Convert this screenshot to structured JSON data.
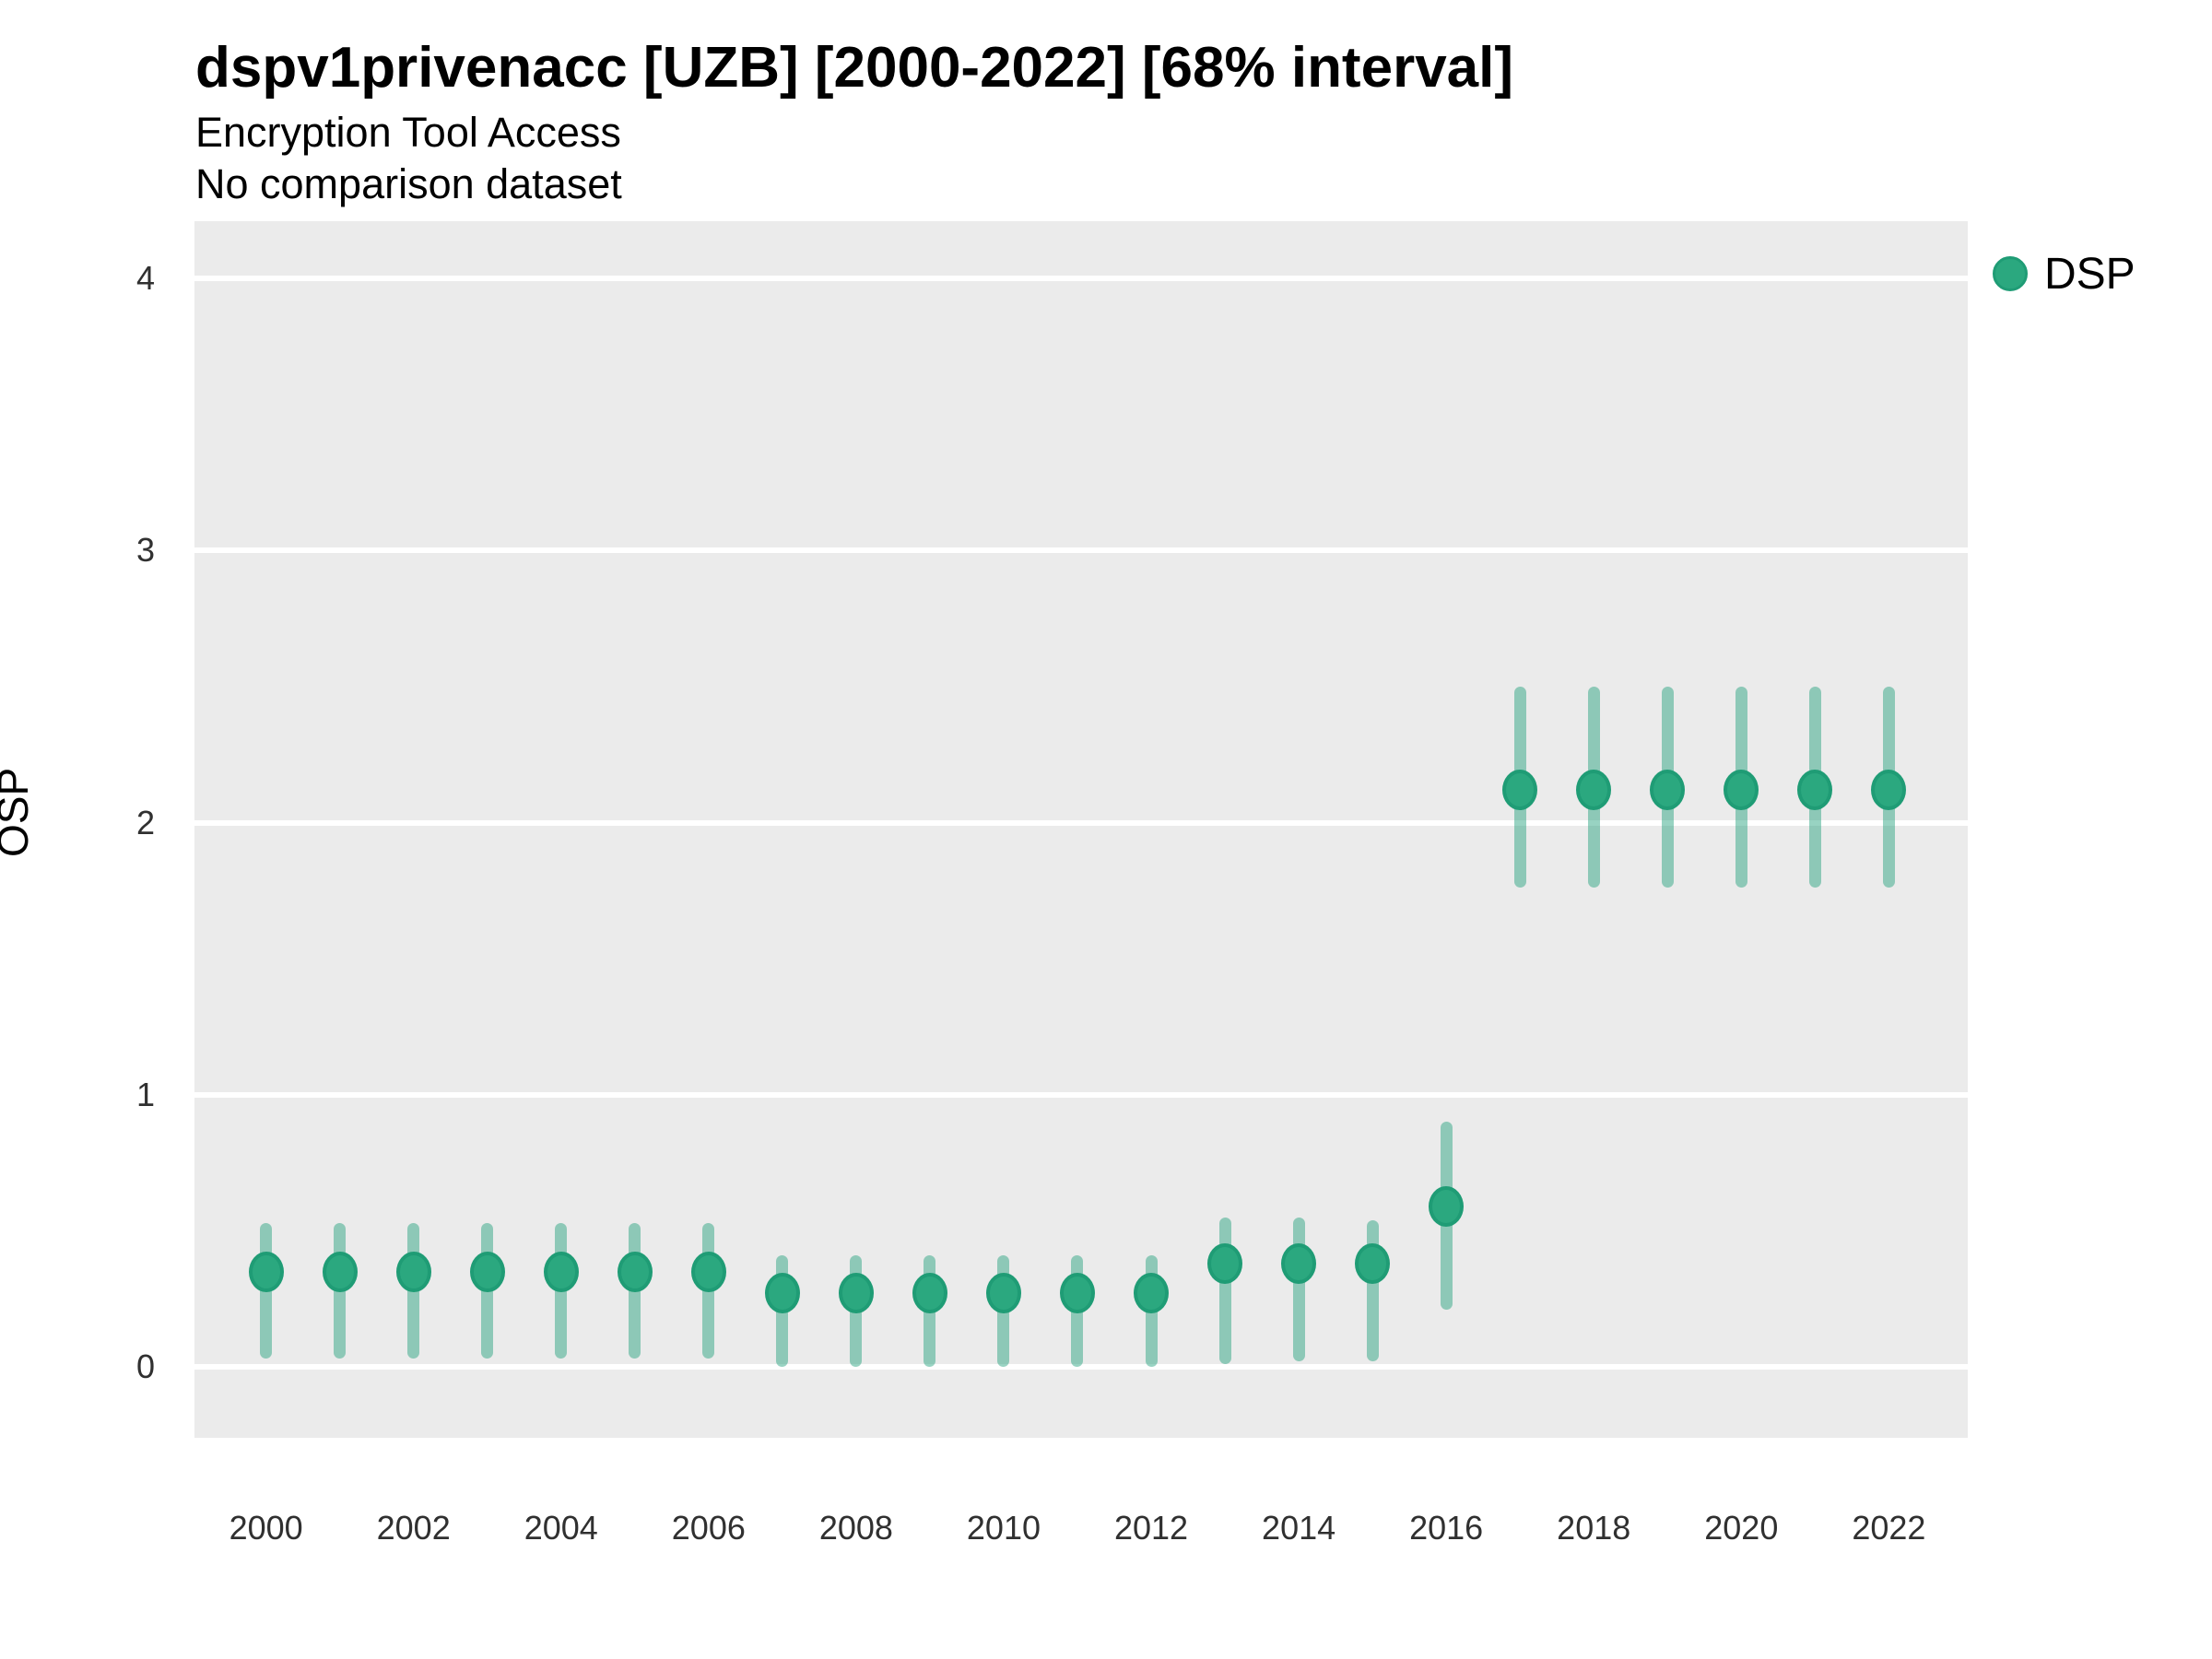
{
  "header": {
    "title": "dspv1privenacc [UZB] [2000-2022] [68% interval]",
    "subtitle1": "Encryption Tool Access",
    "subtitle2": "No comparison dataset"
  },
  "colors": {
    "panel_background": "#ebebeb",
    "gridline": "#ffffff",
    "point_fill": "#2ba87f",
    "point_stroke": "#1f9c75",
    "interval_color": "rgba(27,158,119,0.45)",
    "tick_text": "#303030",
    "title_text": "#000000"
  },
  "chart_data": {
    "type": "pointrange-scatter",
    "title": "dspv1privenacc [UZB] [2000-2022] [68% interval]",
    "subtitle": "Encryption Tool Access",
    "note": "No comparison dataset",
    "xlabel": "",
    "ylabel": "OSP",
    "legend_position": "right-top",
    "legend": {
      "label": "DSP"
    },
    "grid": "major-horizontal-white-on-gray",
    "x_ticks": [
      2000,
      2002,
      2004,
      2006,
      2008,
      2010,
      2012,
      2014,
      2016,
      2018,
      2020,
      2022
    ],
    "y_ticks": [
      0,
      1,
      2,
      3,
      4
    ],
    "xlim": [
      1999.03,
      2023.07
    ],
    "ylim": [
      -0.26,
      4.21
    ],
    "interval_level": "68%",
    "series": [
      {
        "name": "DSP",
        "points": [
          {
            "year": 2000,
            "value": 0.35,
            "lower": 0.03,
            "upper": 0.53
          },
          {
            "year": 2001,
            "value": 0.35,
            "lower": 0.03,
            "upper": 0.53
          },
          {
            "year": 2002,
            "value": 0.35,
            "lower": 0.03,
            "upper": 0.53
          },
          {
            "year": 2003,
            "value": 0.35,
            "lower": 0.03,
            "upper": 0.53
          },
          {
            "year": 2004,
            "value": 0.35,
            "lower": 0.03,
            "upper": 0.53
          },
          {
            "year": 2005,
            "value": 0.35,
            "lower": 0.03,
            "upper": 0.53
          },
          {
            "year": 2006,
            "value": 0.35,
            "lower": 0.03,
            "upper": 0.53
          },
          {
            "year": 2007,
            "value": 0.27,
            "lower": 0.0,
            "upper": 0.41
          },
          {
            "year": 2008,
            "value": 0.27,
            "lower": 0.0,
            "upper": 0.41
          },
          {
            "year": 2009,
            "value": 0.27,
            "lower": 0.0,
            "upper": 0.41
          },
          {
            "year": 2010,
            "value": 0.27,
            "lower": 0.0,
            "upper": 0.41
          },
          {
            "year": 2011,
            "value": 0.27,
            "lower": 0.0,
            "upper": 0.41
          },
          {
            "year": 2012,
            "value": 0.27,
            "lower": 0.0,
            "upper": 0.41
          },
          {
            "year": 2013,
            "value": 0.38,
            "lower": 0.01,
            "upper": 0.55
          },
          {
            "year": 2014,
            "value": 0.38,
            "lower": 0.02,
            "upper": 0.55
          },
          {
            "year": 2015,
            "value": 0.38,
            "lower": 0.02,
            "upper": 0.54
          },
          {
            "year": 2016,
            "value": 0.59,
            "lower": 0.21,
            "upper": 0.9
          },
          {
            "year": 2017,
            "value": 2.12,
            "lower": 1.76,
            "upper": 2.5
          },
          {
            "year": 2018,
            "value": 2.12,
            "lower": 1.76,
            "upper": 2.5
          },
          {
            "year": 2019,
            "value": 2.12,
            "lower": 1.76,
            "upper": 2.5
          },
          {
            "year": 2020,
            "value": 2.12,
            "lower": 1.76,
            "upper": 2.5
          },
          {
            "year": 2021,
            "value": 2.12,
            "lower": 1.76,
            "upper": 2.5
          },
          {
            "year": 2022,
            "value": 2.12,
            "lower": 1.76,
            "upper": 2.5
          }
        ]
      }
    ]
  }
}
